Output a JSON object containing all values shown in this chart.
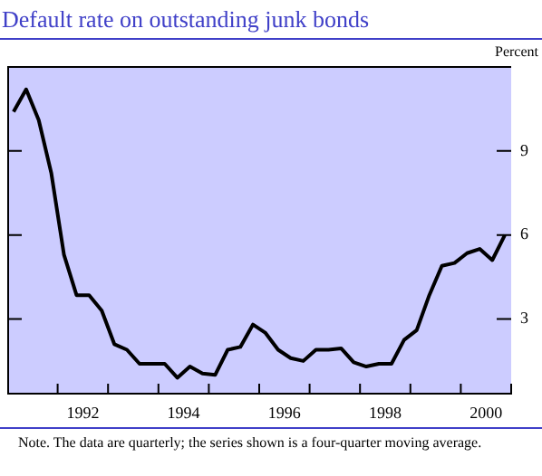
{
  "chart_data": {
    "type": "line",
    "title": "Default rate on outstanding junk bonds",
    "ylabel": "Percent",
    "annotations": [
      "Note. The data are quarterly; the series shown is a four-quarter moving average."
    ],
    "x": [
      1991.125,
      1991.375,
      1991.625,
      1991.875,
      1992.125,
      1992.375,
      1992.625,
      1992.875,
      1993.125,
      1993.375,
      1993.625,
      1993.875,
      1994.125,
      1994.375,
      1994.625,
      1994.875,
      1995.125,
      1995.375,
      1995.625,
      1995.875,
      1996.125,
      1996.375,
      1996.625,
      1996.875,
      1997.125,
      1997.375,
      1997.625,
      1997.875,
      1998.125,
      1998.375,
      1998.625,
      1998.875,
      1999.125,
      1999.375,
      1999.625,
      1999.875,
      2000.125,
      2000.375,
      2000.625,
      2000.875
    ],
    "series": [
      {
        "color": "#000000",
        "values": [
          10.4,
          11.2,
          10.1,
          8.2,
          5.3,
          3.85,
          3.85,
          3.3,
          2.1,
          1.9,
          1.4,
          1.4,
          1.4,
          0.9,
          1.3,
          1.05,
          1.0,
          1.9,
          2.0,
          2.8,
          2.5,
          1.9,
          1.6,
          1.5,
          1.9,
          1.9,
          1.95,
          1.45,
          1.3,
          1.4,
          1.4,
          2.25,
          2.6,
          3.85,
          4.9,
          5.0,
          5.35,
          5.5,
          5.1,
          6.0
        ]
      }
    ],
    "xlim": [
      1991,
      2001
    ],
    "xticks": [
      {
        "value": 1992,
        "label": null
      },
      {
        "value": 1992.5,
        "label": "1992"
      },
      {
        "value": 1993,
        "label": null
      },
      {
        "value": 1994,
        "label": null
      },
      {
        "value": 1994.5,
        "label": "1994"
      },
      {
        "value": 1995,
        "label": null
      },
      {
        "value": 1996,
        "label": null
      },
      {
        "value": 1996.5,
        "label": "1996"
      },
      {
        "value": 1997,
        "label": null
      },
      {
        "value": 1998,
        "label": null
      },
      {
        "value": 1998.5,
        "label": "1998"
      },
      {
        "value": 1999,
        "label": null
      },
      {
        "value": 2000,
        "label": null
      },
      {
        "value": 2000.5,
        "label": "2000"
      },
      {
        "value": 2001,
        "label": null
      }
    ],
    "ylim": [
      0.3,
      12
    ],
    "yticks": [
      3,
      6,
      9
    ],
    "grid": false,
    "legend": false,
    "marker": "none",
    "line_style": "solid"
  }
}
